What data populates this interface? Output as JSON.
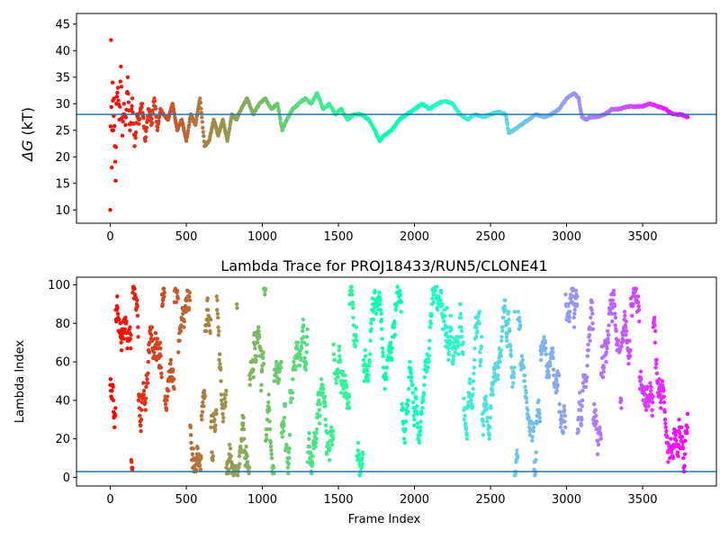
{
  "figure": {
    "background": "#ffffff",
    "colormap": "rainbow",
    "reference_line_color": "#1f77b4"
  },
  "chart_data": [
    {
      "type": "scatter",
      "title": "",
      "xlabel": "",
      "ylabel": "ΔG (kT)",
      "ylabel_math_symbol": "ΔG",
      "ylabel_rest": " (kT)",
      "xlim": [
        -222,
        3985
      ],
      "ylim": [
        7.5,
        47
      ],
      "xticks": [
        0,
        500,
        1000,
        1500,
        2000,
        2500,
        3000,
        3500
      ],
      "yticks": [
        10,
        15,
        20,
        25,
        30,
        35,
        40,
        45
      ],
      "hline": 28,
      "grid": false,
      "legend": "none",
      "color_by": "x (rainbow, red → violet)",
      "x_range": [
        0,
        3796
      ],
      "series": [
        {
          "x": [
            0,
            5,
            10,
            15,
            20,
            25,
            30,
            35,
            40,
            50,
            60,
            70,
            80,
            90,
            100,
            115,
            130,
            145,
            160,
            175,
            190,
            210,
            230,
            250,
            270,
            290,
            310,
            330,
            350,
            380,
            410,
            440,
            470,
            500,
            530,
            560,
            590,
            620,
            650,
            680,
            710,
            740,
            770,
            800,
            830,
            860,
            900,
            940,
            980,
            1020,
            1060,
            1100,
            1130,
            1160,
            1200,
            1240,
            1280,
            1320,
            1360,
            1400,
            1440,
            1480,
            1520,
            1560,
            1600,
            1650,
            1700,
            1740,
            1770,
            1800,
            1850,
            1900,
            1950,
            2000,
            2050,
            2100,
            2150,
            2200,
            2250,
            2300,
            2350,
            2400,
            2450,
            2500,
            2550,
            2600,
            2620,
            2650,
            2700,
            2750,
            2800,
            2850,
            2900,
            2950,
            3000,
            3050,
            3080,
            3100,
            3130,
            3150,
            3200,
            3250,
            3300,
            3350,
            3400,
            3450,
            3500,
            3550,
            3600,
            3650,
            3700,
            3750,
            3796
          ],
          "y": [
            10,
            42,
            18,
            34,
            25,
            31,
            22,
            15.5,
            30,
            33,
            27,
            37,
            24,
            30,
            26,
            35,
            25,
            31,
            22,
            28,
            27,
            30,
            23,
            29,
            26,
            31,
            25,
            29,
            28,
            27,
            30,
            25,
            27,
            23,
            28,
            26,
            31,
            22,
            23,
            27,
            24,
            27,
            23,
            28,
            27,
            29,
            31,
            28,
            30,
            31,
            29,
            30,
            25,
            27,
            29,
            30,
            31,
            30,
            32,
            29,
            30,
            28,
            29,
            27,
            28,
            28,
            27,
            25,
            23,
            24,
            25,
            27,
            28,
            29,
            30,
            29,
            30,
            30.5,
            30,
            28,
            27,
            28,
            27.5,
            28,
            28.5,
            28,
            24.5,
            25,
            26,
            27,
            28,
            27.5,
            28,
            29,
            31,
            32,
            31,
            27.5,
            27,
            27.5,
            27.5,
            28,
            29,
            29,
            29.5,
            29.5,
            29.5,
            30,
            29.5,
            29,
            28,
            28,
            27.5
          ]
        }
      ]
    },
    {
      "type": "scatter",
      "title": "Lambda Trace for PROJ18433/RUN5/CLONE41",
      "xlabel": "Frame Index",
      "ylabel": "Lambda Index",
      "xlim": [
        -222,
        3985
      ],
      "ylim": [
        -4.5,
        104
      ],
      "xticks": [
        0,
        500,
        1000,
        1500,
        2000,
        2500,
        3000,
        3500
      ],
      "yticks": [
        0,
        20,
        40,
        60,
        80,
        100
      ],
      "hline": 3,
      "grid": false,
      "legend": "none",
      "color_by": "x (rainbow, red → violet)",
      "x_range": [
        0,
        3796
      ],
      "lambda_range": [
        1,
        99
      ],
      "frame_count": 3797
    }
  ]
}
